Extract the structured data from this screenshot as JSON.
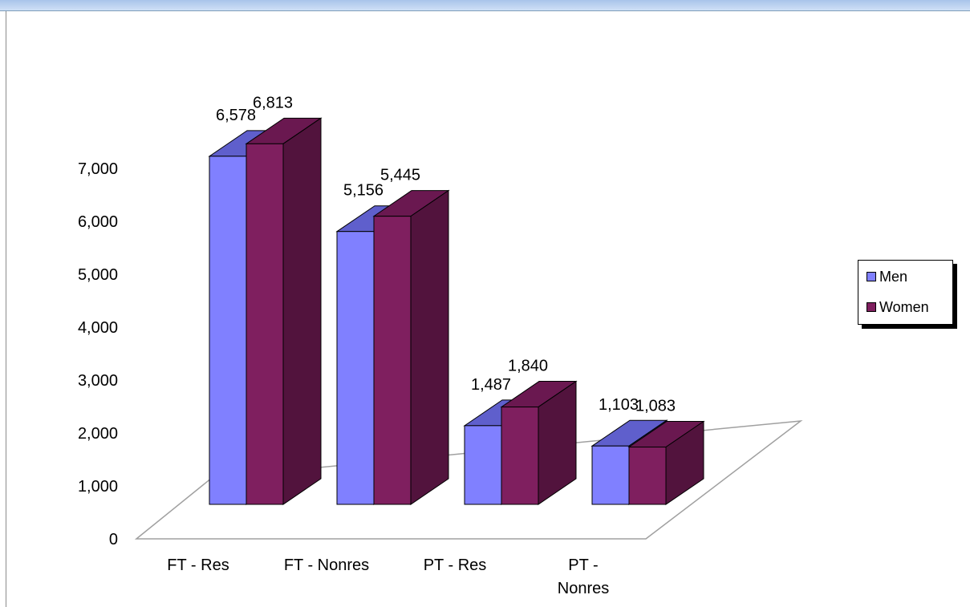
{
  "chart_data": {
    "type": "bar",
    "categories": [
      "FT - Res",
      "FT - Nonres",
      "PT - Res",
      "PT - Nonres"
    ],
    "series": [
      {
        "name": "Men",
        "values": [
          6578,
          5156,
          1487,
          1103
        ]
      },
      {
        "name": "Women",
        "values": [
          6813,
          5445,
          1840,
          1083
        ]
      }
    ],
    "data_labels": [
      [
        "6,578",
        "6,813"
      ],
      [
        "5,156",
        "5,445"
      ],
      [
        "1,487",
        "1,840"
      ],
      [
        "1,103",
        "1,083"
      ]
    ],
    "y_ticks": [
      "0",
      "1,000",
      "2,000",
      "3,000",
      "4,000",
      "5,000",
      "6,000",
      "7,000"
    ],
    "ylim": [
      0,
      7000
    ],
    "legend_position": "right",
    "grid": false,
    "style": "3d-clustered-column"
  },
  "colors": {
    "men_front": "#8080ff",
    "men_top": "#5f5fcc",
    "women_front": "#7f1f5f",
    "women_side": "#52133d",
    "women_top": "#6a1850"
  }
}
